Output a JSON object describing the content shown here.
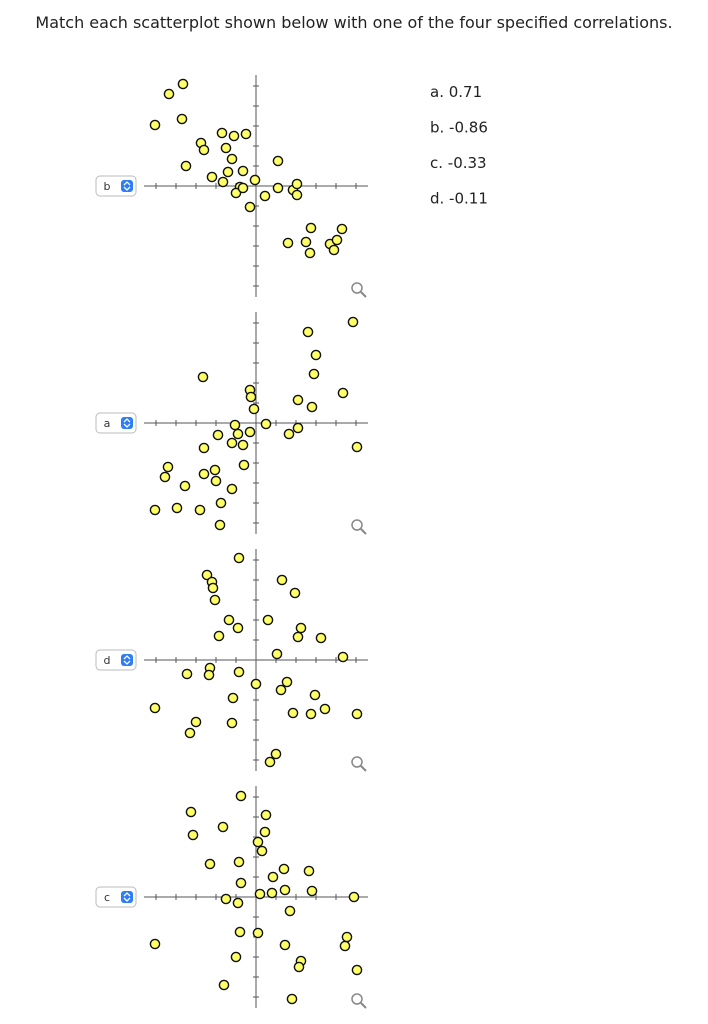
{
  "question": "Match each scatterplot shown below with one of the four specified correlations.",
  "options": [
    "a. 0.71",
    "b. -0.86",
    "c. -0.33",
    "d. -0.11"
  ],
  "plots": [
    {
      "selected": "b",
      "xlim": [
        -11.2,
        11.2
      ],
      "ylim": [
        -11.1,
        11.1
      ],
      "xticks": [
        -10,
        -8,
        -6,
        -4,
        -2,
        2,
        4,
        6,
        8,
        10
      ],
      "yticks": [
        -10,
        -8,
        -6,
        -4,
        -2,
        2,
        4,
        6,
        8,
        10
      ],
      "points": {
        "x": [
          -7.3,
          -8.7,
          -10.1,
          -7.4,
          -5.5,
          -5.2,
          -3.4,
          -2.2,
          -1.0,
          -3.0,
          -2.4,
          -2.8,
          -1.3,
          -0.1,
          2.2,
          -7.0,
          -4.4,
          -3.3,
          -1.6,
          -2.0,
          -1.3,
          0.9,
          -0.6,
          2.2,
          3.7,
          4.1,
          4.1,
          5.5,
          5.0,
          3.2,
          5.4,
          7.4,
          7.8,
          8.6,
          8.1
        ],
        "y": [
          10.2,
          9.2,
          6.1,
          6.7,
          4.3,
          3.6,
          5.3,
          5.0,
          5.2,
          3.8,
          2.7,
          1.4,
          1.5,
          0.6,
          2.5,
          2.0,
          0.9,
          0.4,
          -0.1,
          -0.7,
          -0.2,
          -1.0,
          -2.1,
          -0.2,
          -0.4,
          0.2,
          -0.9,
          -4.2,
          -5.6,
          -5.7,
          -6.7,
          -5.8,
          -6.4,
          -4.3,
          -5.4
        ]
      }
    },
    {
      "selected": "a",
      "xlim": [
        -11.2,
        11.2
      ],
      "ylim": [
        -11.1,
        11.1
      ],
      "xticks": [
        -10,
        -8,
        -6,
        -4,
        -2,
        2,
        4,
        6,
        8,
        10
      ],
      "yticks": [
        -10,
        -8,
        -6,
        -4,
        -2,
        2,
        4,
        6,
        8,
        10
      ],
      "points": {
        "x": [
          5.2,
          6.0,
          5.8,
          -5.3,
          -0.6,
          -0.5,
          4.2,
          5.6,
          8.7,
          -0.2,
          9.7,
          1.0,
          -2.1,
          -0.6,
          -1.8,
          -3.8,
          4.2,
          3.3,
          -2.4,
          -1.3,
          -5.2,
          10.1,
          -1.2,
          -8.8,
          -9.1,
          -4.1,
          -5.2,
          -4.0,
          -7.1,
          -2.4,
          -3.5,
          -10.1,
          -7.9,
          -5.6,
          -3.6
        ],
        "y": [
          9.1,
          6.8,
          4.9,
          4.6,
          3.3,
          2.6,
          2.3,
          1.6,
          3.0,
          1.4,
          10.1,
          -0.1,
          -0.2,
          -0.9,
          -1.1,
          -1.2,
          -0.5,
          -1.1,
          -2.0,
          -2.2,
          -2.5,
          -2.4,
          -4.2,
          -4.4,
          -5.4,
          -4.7,
          -5.1,
          -5.8,
          -6.3,
          -6.6,
          -8.0,
          -8.7,
          -8.5,
          -8.7,
          -10.2
        ]
      }
    },
    {
      "selected": "d",
      "xlim": [
        -11.2,
        11.2
      ],
      "ylim": [
        -11.1,
        11.1
      ],
      "xticks": [
        -10,
        -8,
        -6,
        -4,
        -2,
        2,
        4,
        6,
        8,
        10
      ],
      "yticks": [
        -10,
        -8,
        -6,
        -4,
        -2,
        2,
        4,
        6,
        8,
        10
      ],
      "points": {
        "x": [
          -1.7,
          -4.9,
          -4.4,
          -4.3,
          -4.1,
          2.6,
          3.9,
          -2.7,
          -1.8,
          -3.7,
          1.2,
          4.5,
          4.2,
          6.5,
          2.1,
          8.7,
          -6.9,
          -4.6,
          -4.7,
          -1.7,
          0.0,
          3.1,
          2.5,
          -2.3,
          5.9,
          -10.1,
          3.7,
          5.5,
          6.9,
          10.1,
          -6.0,
          -6.6,
          -2.4,
          2.0,
          1.4
        ],
        "y": [
          10.2,
          8.5,
          7.8,
          7.2,
          6.0,
          8.0,
          6.7,
          4.0,
          3.2,
          2.4,
          4.0,
          3.2,
          2.3,
          2.2,
          0.6,
          0.3,
          -1.4,
          -0.8,
          -1.5,
          -1.2,
          -2.4,
          -2.2,
          -3.0,
          -3.8,
          -3.5,
          -4.8,
          -5.3,
          -5.4,
          -4.9,
          -5.4,
          -6.2,
          -7.3,
          -6.3,
          -9.4,
          -10.2
        ]
      }
    },
    {
      "selected": "c",
      "xlim": [
        -11.2,
        11.2
      ],
      "ylim": [
        -11.1,
        11.1
      ],
      "xticks": [
        -10,
        -8,
        -6,
        -4,
        -2,
        2,
        4,
        6,
        8,
        10
      ],
      "yticks": [
        -10,
        -8,
        -6,
        -4,
        -2,
        2,
        4,
        6,
        8,
        10
      ],
      "points": {
        "x": [
          -1.5,
          -6.5,
          1.0,
          -3.3,
          -6.3,
          0.9,
          0.2,
          0.6,
          -4.6,
          -1.7,
          2.8,
          1.7,
          5.3,
          -1.5,
          -3.0,
          -1.8,
          0.4,
          1.6,
          2.9,
          5.6,
          3.4,
          9.8,
          -1.6,
          0.2,
          -10.1,
          2.9,
          9.1,
          8.9,
          -2.0,
          4.5,
          4.3,
          10.1,
          -3.2,
          3.6
        ],
        "y": [
          10.1,
          8.5,
          8.2,
          7.0,
          6.2,
          6.5,
          5.5,
          4.6,
          3.3,
          3.5,
          2.8,
          2.0,
          2.6,
          1.4,
          -0.2,
          -0.6,
          0.3,
          0.4,
          0.7,
          0.6,
          -1.4,
          0.0,
          -3.5,
          -3.6,
          -4.7,
          -4.8,
          -4.0,
          -4.9,
          -6.0,
          -6.4,
          -7.0,
          -7.3,
          -8.8,
          -10.2
        ]
      }
    }
  ]
}
